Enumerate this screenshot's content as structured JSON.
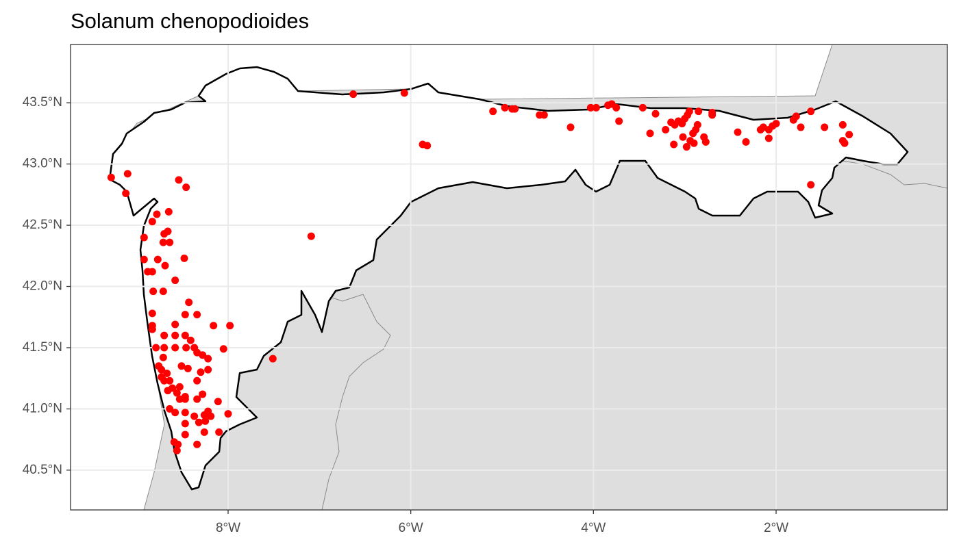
{
  "chart_data": {
    "type": "scatter",
    "title": "Solanum chenopodioides",
    "color": "#ff0000",
    "grid": true,
    "xlim": [
      -9.725,
      -0.125
    ],
    "ylim": [
      40.175,
      43.976
    ],
    "xticks": [
      {
        "value": -8,
        "label": "8°W"
      },
      {
        "value": -6,
        "label": "6°W"
      },
      {
        "value": -4,
        "label": "4°W"
      },
      {
        "value": -2,
        "label": "2°W"
      }
    ],
    "yticks": [
      {
        "value": 40.5,
        "label": "40.5°N"
      },
      {
        "value": 41.0,
        "label": "41.0°N"
      },
      {
        "value": 41.5,
        "label": "41.5°N"
      },
      {
        "value": 42.0,
        "label": "42.0°N"
      },
      {
        "value": 42.5,
        "label": "42.5°N"
      },
      {
        "value": 43.0,
        "label": "43.0°N"
      },
      {
        "value": 43.5,
        "label": "43.5°N"
      }
    ],
    "x": [
      -6.63,
      -6.07,
      -5.87,
      -5.82,
      -5.1,
      -4.97,
      -4.89,
      -4.86,
      -4.59,
      -4.54,
      -4.25,
      -4.03,
      -3.97,
      -3.84,
      -3.8,
      -3.75,
      -3.72,
      -3.46,
      -3.38,
      -3.32,
      -3.21,
      -3.15,
      -3.11,
      -3.07,
      -3.03,
      -3.0,
      -2.97,
      -2.95,
      -3.12,
      -3.02,
      -2.98,
      -2.94,
      -2.91,
      -2.88,
      -2.86,
      -2.9,
      -2.85,
      -2.79,
      -2.7,
      -2.7,
      -2.77,
      -2.42,
      -2.33,
      -2.17,
      -2.14,
      -2.08,
      -2.08,
      -2.04,
      -2.0,
      -1.81,
      -1.78,
      -1.73,
      -1.62,
      -1.62,
      -1.47,
      -1.27,
      -1.27,
      -1.25,
      -1.2,
      -9.28,
      -9.1,
      -9.12,
      -8.54,
      -8.46,
      -8.65,
      -8.78,
      -8.83,
      -8.92,
      -8.7,
      -8.66,
      -8.71,
      -8.64,
      -8.92,
      -8.77,
      -8.48,
      -8.69,
      -8.88,
      -8.83,
      -8.58,
      -8.82,
      -8.71,
      -8.43,
      -8.34,
      -8.47,
      -8.83,
      -8.83,
      -8.83,
      -8.58,
      -8.16,
      -7.98,
      -8.7,
      -8.58,
      -8.47,
      -8.41,
      -8.79,
      -8.7,
      -8.58,
      -8.46,
      -8.37,
      -8.34,
      -8.28,
      -8.22,
      -8.05,
      -7.51,
      -8.71,
      -8.76,
      -8.73,
      -8.67,
      -8.73,
      -8.7,
      -8.64,
      -8.51,
      -8.44,
      -8.34,
      -8.3,
      -8.22,
      -8.66,
      -8.61,
      -8.56,
      -8.53,
      -8.53,
      -8.47,
      -8.47,
      -8.34,
      -8.28,
      -8.11,
      -8.64,
      -8.58,
      -8.47,
      -8.37,
      -8.32,
      -8.26,
      -8.19,
      -8.22,
      -8.25,
      -8.0,
      -8.1,
      -8.26,
      -8.47,
      -8.47,
      -8.59,
      -8.55,
      -8.34,
      -8.56,
      -7.09
    ],
    "y": [
      43.57,
      43.58,
      43.16,
      43.15,
      43.43,
      43.46,
      43.45,
      43.45,
      43.4,
      43.4,
      43.3,
      43.46,
      43.46,
      43.48,
      43.49,
      43.46,
      43.35,
      43.46,
      43.25,
      43.41,
      43.28,
      43.34,
      43.32,
      43.35,
      43.33,
      43.37,
      43.4,
      43.43,
      43.16,
      43.22,
      43.14,
      43.19,
      43.25,
      43.28,
      43.32,
      43.17,
      43.43,
      43.22,
      43.42,
      43.4,
      43.18,
      43.26,
      43.18,
      43.28,
      43.3,
      43.28,
      43.21,
      43.31,
      43.33,
      43.36,
      43.39,
      43.3,
      43.43,
      42.83,
      43.3,
      43.32,
      43.19,
      43.17,
      43.24,
      42.89,
      42.92,
      42.76,
      42.87,
      42.81,
      42.61,
      42.59,
      42.53,
      42.4,
      42.43,
      42.45,
      42.36,
      42.36,
      42.22,
      42.22,
      42.23,
      42.17,
      42.12,
      42.12,
      42.05,
      41.96,
      41.96,
      41.87,
      41.77,
      41.77,
      41.78,
      41.68,
      41.65,
      41.69,
      41.68,
      41.68,
      41.6,
      41.6,
      41.6,
      41.56,
      41.5,
      41.5,
      41.5,
      41.5,
      41.5,
      41.46,
      41.44,
      41.41,
      41.49,
      41.41,
      41.42,
      41.35,
      41.32,
      41.29,
      41.26,
      41.23,
      41.23,
      41.35,
      41.33,
      41.23,
      41.3,
      41.32,
      41.15,
      41.17,
      41.13,
      41.18,
      41.08,
      41.1,
      41.08,
      41.08,
      41.12,
      41.06,
      41.0,
      40.97,
      40.97,
      40.94,
      40.89,
      40.95,
      40.94,
      40.98,
      40.9,
      40.96,
      40.81,
      40.81,
      40.88,
      40.79,
      40.73,
      40.71,
      40.71,
      40.66,
      42.41
    ]
  }
}
